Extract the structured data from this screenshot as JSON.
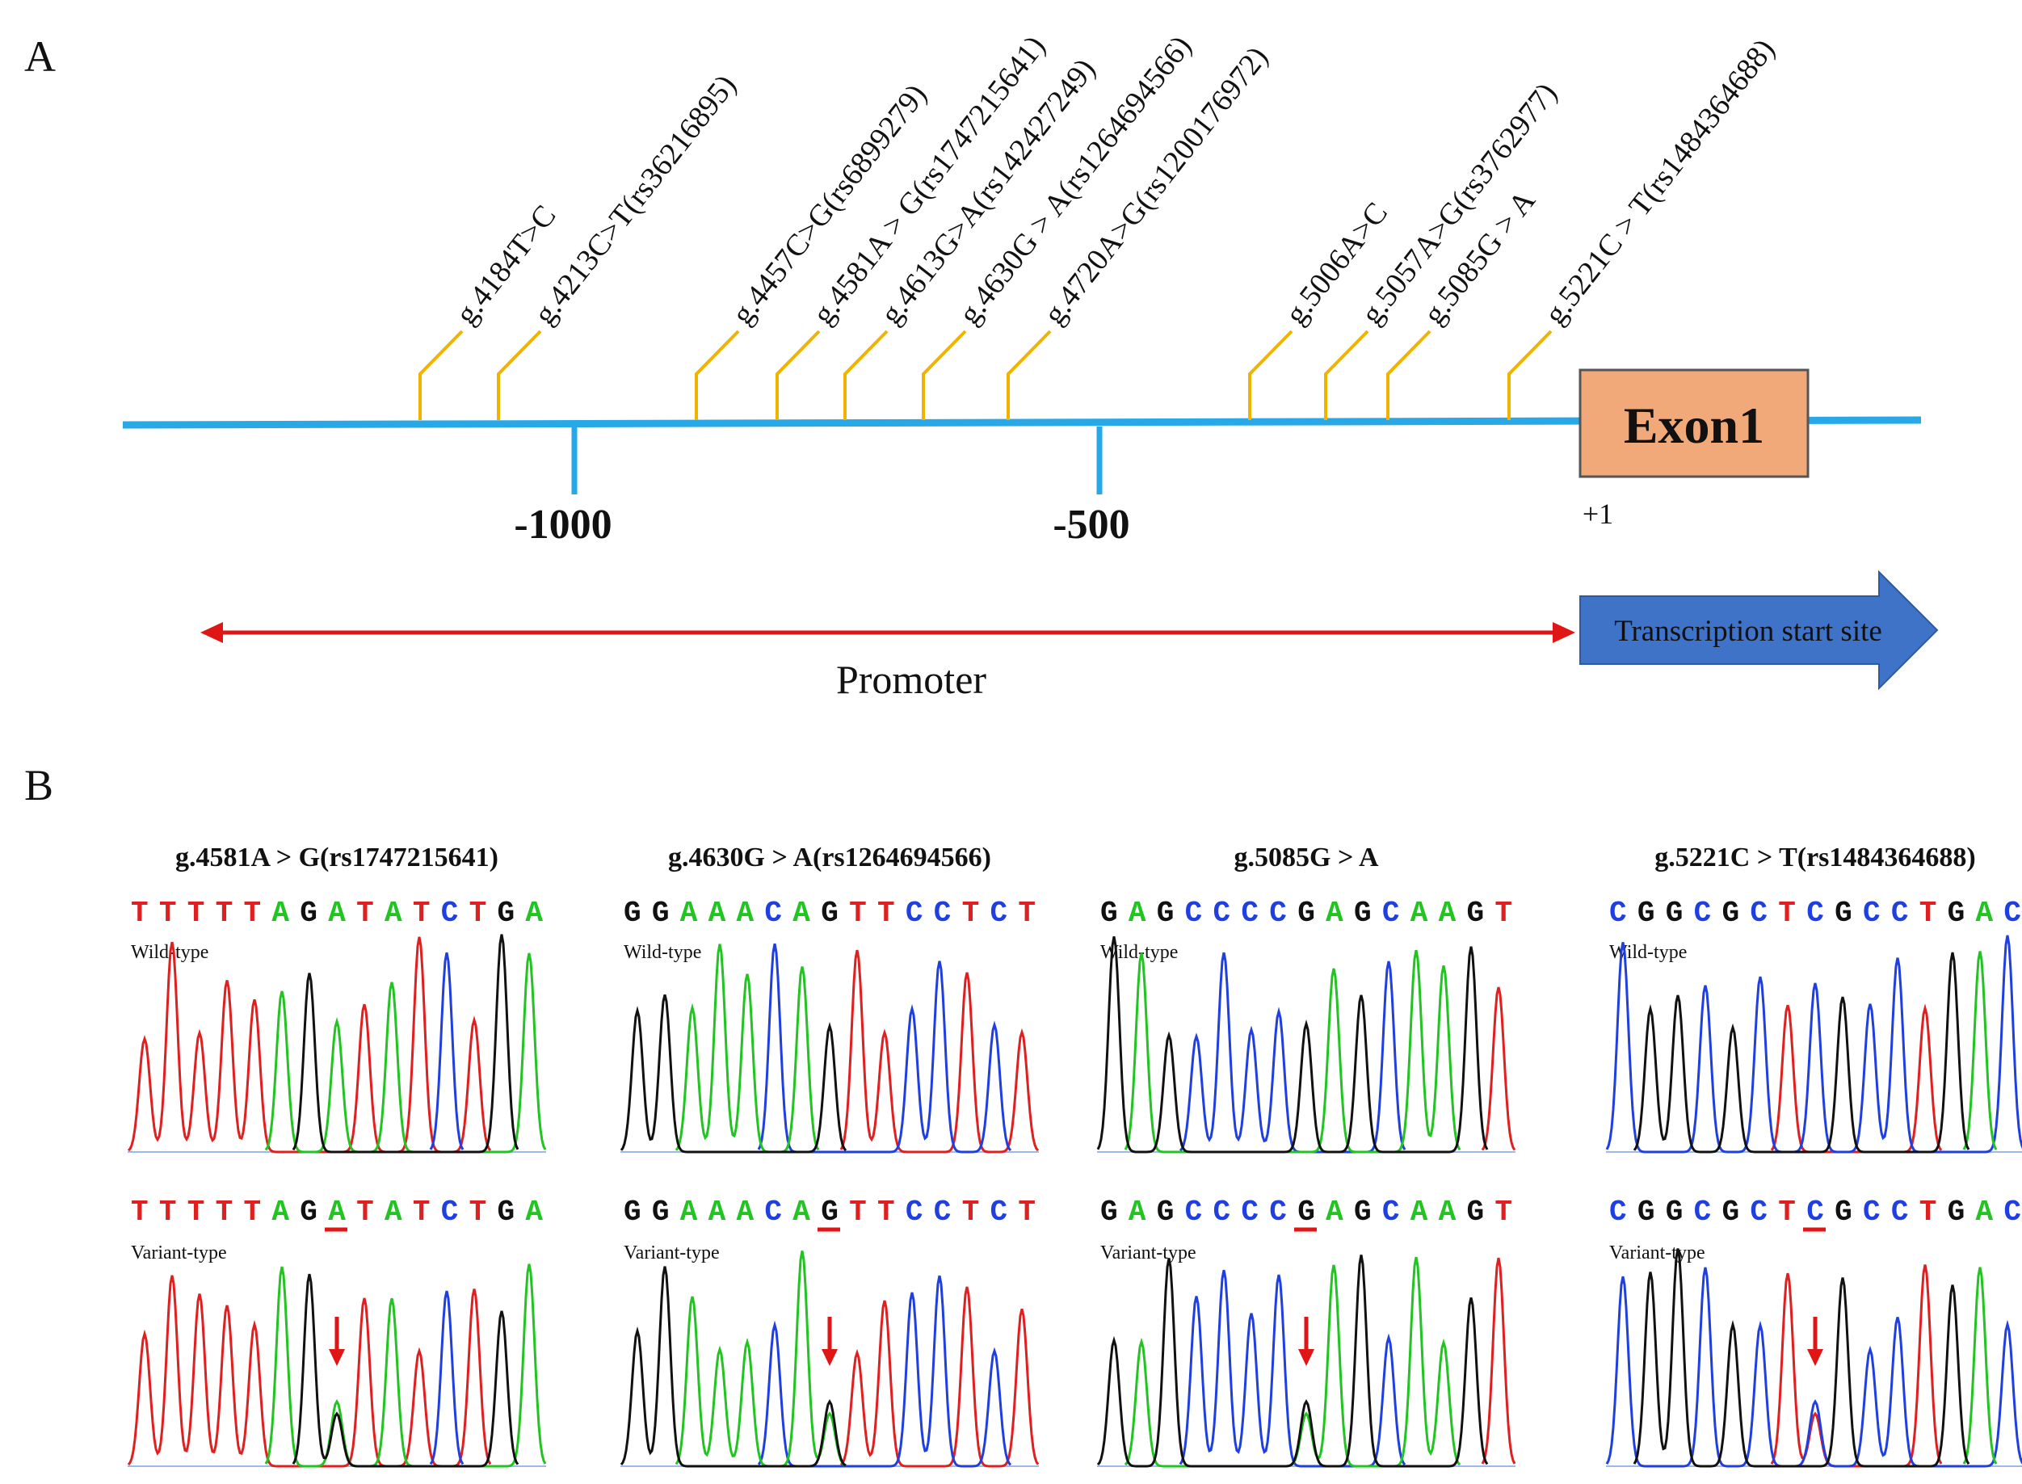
{
  "panel_a": {
    "label": "A",
    "snp_labels": [
      "g.4184T>C",
      "g.4213C>T(rs36216895)",
      "g.4457C>G(rs6899279)",
      "g.4581A > G(rs1747215641)",
      "g.4613G>A(rs142427249)",
      "g.4630G > A(rs1264694566)",
      "g.4720A>G(rs1200176972)",
      "g.5006A>C",
      "g.5057A>G(rs3762977)",
      "g.5085G > A",
      "g.5221C > T(rs1484364688)"
    ],
    "ticks": [
      "-1000",
      "-500"
    ],
    "exon_label": "Exon1",
    "plus_one": "+1",
    "tss_label": "Transcription start site",
    "promoter_label": "Promoter"
  },
  "panel_b": {
    "label": "B",
    "wild_label": "Wild-type",
    "variant_label": "Variant-type",
    "panels": [
      {
        "title": "g.4581A > G(rs1747215641)",
        "seq": "TTTTTAGATATCTGA",
        "mut_index": 7
      },
      {
        "title": "g.4630G > A(rs1264694566)",
        "seq": "GGAAACAGTTCCTCT",
        "mut_index": 7
      },
      {
        "title": "g.5085G > A",
        "seq": "GAGCCCCGAGCAAGT",
        "mut_index": 7
      },
      {
        "title": "g.5221C > T(rs1484364688)",
        "seq": "CGGCGCTCGCCTGAC",
        "mut_index": 7
      }
    ]
  },
  "colors": {
    "A": "#21c421",
    "C": "#1f3fe0",
    "G": "#111111",
    "T": "#e02020",
    "axis": "#29a8e8",
    "snp_line": "#f0b400",
    "exon_fill": "#f2a97a",
    "tss_fill": "#3f73c7",
    "promoter": "#e01515"
  }
}
